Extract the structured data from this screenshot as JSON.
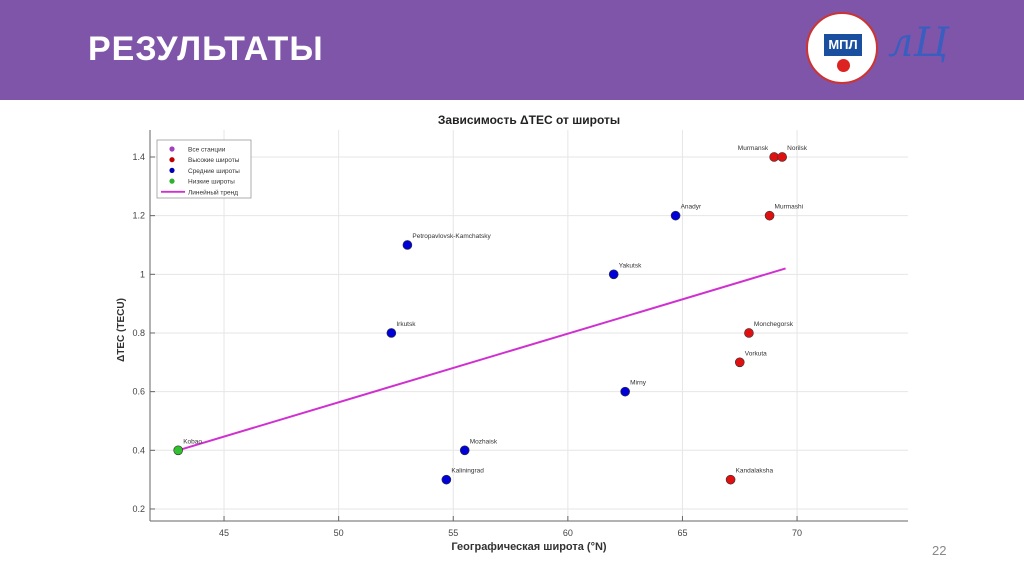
{
  "slide": {
    "title": "РЕЗУЛЬТАТЫ",
    "page_number": "22",
    "logo_text": "МПЛ",
    "logo2_text": "лЦ"
  },
  "chart_data": {
    "type": "scatter",
    "title": "Зависимость ΔTEC от широты",
    "xlabel": "Географическая широта (°N)",
    "ylabel": "ΔTEC (TECU)",
    "xlim": [
      41.77,
      74.84
    ],
    "ylim": [
      0.159,
      1.492
    ],
    "xticks": [
      45,
      50,
      55,
      60,
      65,
      70
    ],
    "yticks": [
      0.2,
      0.4,
      0.6,
      0.8,
      1,
      1.2,
      1.4
    ],
    "ytick_labels": [
      "0.2",
      "0.4",
      "0.6",
      "0.8",
      "1",
      "1.2",
      "1.4"
    ],
    "grid": true,
    "legend_position": "top-left",
    "legend": [
      {
        "label": "Все станции",
        "type": "dot",
        "color": "#a040c0"
      },
      {
        "label": "Высокие широты",
        "type": "dot",
        "color": "#c00000"
      },
      {
        "label": "Средние широты",
        "type": "dot",
        "color": "#0000b0"
      },
      {
        "label": "Низкие широты",
        "type": "dot",
        "color": "#30b030"
      },
      {
        "label": "Линейный тренд",
        "type": "line",
        "color": "#d030d0"
      }
    ],
    "series": [
      {
        "name": "Высокие широты",
        "color": "#e01010",
        "points": [
          {
            "label": "Murmansk",
            "x": 69.0,
            "y": 1.4
          },
          {
            "label": "Norilsk",
            "x": 69.35,
            "y": 1.4
          },
          {
            "label": "Murmashi",
            "x": 68.8,
            "y": 1.2
          },
          {
            "label": "Monchegorsk",
            "x": 67.9,
            "y": 0.8
          },
          {
            "label": "Vorkuta",
            "x": 67.5,
            "y": 0.7
          },
          {
            "label": "Kandalaksha",
            "x": 67.1,
            "y": 0.3
          }
        ]
      },
      {
        "name": "Средние широты",
        "color": "#0000d8",
        "points": [
          {
            "label": "Anadyr",
            "x": 64.7,
            "y": 1.2
          },
          {
            "label": "Petropavlovsk-Kamchatsky",
            "x": 53.0,
            "y": 1.1
          },
          {
            "label": "Yakutsk",
            "x": 62.0,
            "y": 1.0
          },
          {
            "label": "Irkutsk",
            "x": 52.3,
            "y": 0.8
          },
          {
            "label": "Mirny",
            "x": 62.5,
            "y": 0.6
          },
          {
            "label": "Mozhaisk",
            "x": 55.5,
            "y": 0.4
          },
          {
            "label": "Kaliningrad",
            "x": 54.7,
            "y": 0.3
          }
        ]
      },
      {
        "name": "Низкие широты",
        "color": "#30c030",
        "points": [
          {
            "label": "Kobao",
            "x": 43.0,
            "y": 0.4
          }
        ]
      }
    ],
    "trend": {
      "name": "Линейный тренд",
      "color": "#d030d0",
      "x": [
        43.0,
        69.5
      ],
      "y": [
        0.4,
        1.02
      ]
    }
  }
}
